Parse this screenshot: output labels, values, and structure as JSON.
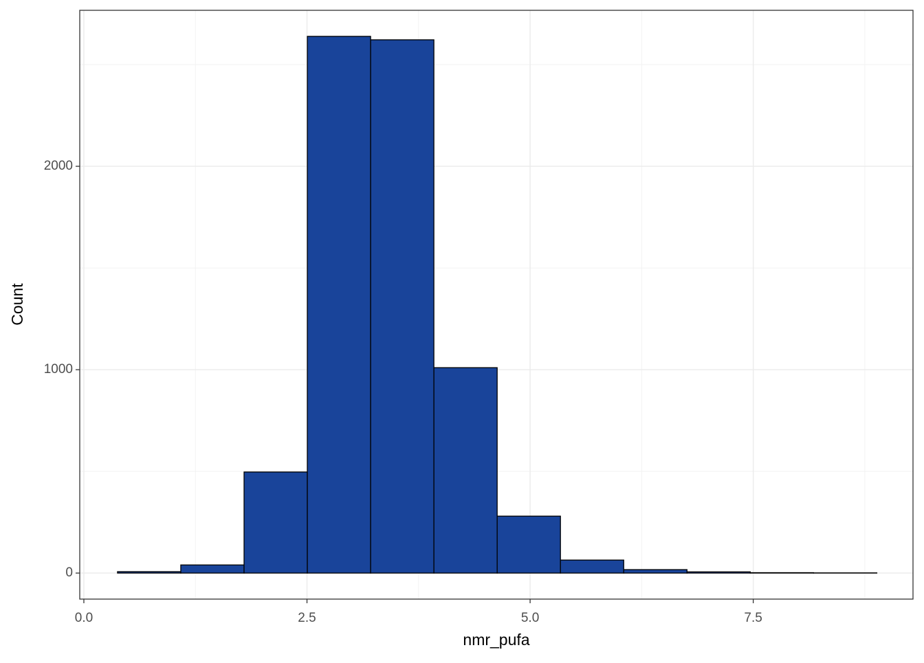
{
  "chart_data": {
    "type": "histogram",
    "x_label": "nmr_pufa",
    "y_label": "Count",
    "bins": [
      0.377,
      1.086,
      1.795,
      2.504,
      3.213,
      3.922,
      4.631,
      5.34,
      6.049,
      6.758,
      7.467,
      8.176,
      8.885
    ],
    "counts": [
      7,
      40,
      497,
      2639,
      2622,
      1010,
      280,
      64,
      17,
      6,
      2,
      1
    ],
    "color": "#19449a",
    "edge_color": "#000000",
    "xlim": [
      -0.046,
      9.29
    ],
    "ylim": [
      -128,
      2767
    ],
    "xticks": [
      {
        "value": 0,
        "label": "0.0"
      },
      2.5,
      {
        "value": 5,
        "label": "5.0"
      },
      7.5
    ],
    "yticks": [
      0,
      1000,
      2000
    ],
    "xminor": [
      1.25,
      3.75,
      6.25,
      8.75
    ],
    "yminor": [
      500,
      1500,
      2500
    ],
    "grid": true
  }
}
